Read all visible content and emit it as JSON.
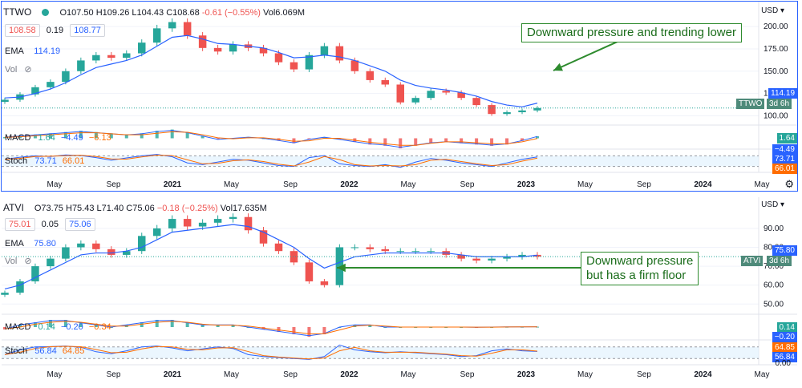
{
  "annotations": {
    "top": "Downward pressure and trending lower",
    "bottom_line1": "Downward pressure",
    "bottom_line2": "but has a firm floor"
  },
  "x_axis_labels": [
    "May",
    "Sep",
    "2021",
    "May",
    "Sep",
    "2022",
    "May",
    "Sep",
    "2023",
    "May",
    "Sep",
    "2024",
    "May"
  ],
  "colors": {
    "up": "#26a69a",
    "down": "#ef5350",
    "ema": "#2962ff",
    "macd": "#2962ff",
    "signal": "#ff6d00",
    "stoch_k": "#2962ff",
    "stoch_d": "#ff6d00",
    "accent": "#2e8b2e"
  },
  "charts": [
    {
      "symbol": "TTWO",
      "ohlc_text": {
        "o": "O107.50",
        "h": "H109.26",
        "l": "L104.43",
        "c": "C108.68",
        "chg": "-0.61 (−0.55%)",
        "vol": "Vol6.069M"
      },
      "bid": "108.58",
      "spread": "0.19",
      "ask": "108.77",
      "ema_label": "EMA",
      "ema_value": "114.19",
      "vol_label": "Vol",
      "macd_label": "MACD",
      "macd_values": [
        "1.64",
        "−4.49",
        "−6.13"
      ],
      "stoch_label": "Stoch",
      "stoch_values": [
        "73.71",
        "66.01"
      ],
      "currency": "USD",
      "price_ticks": [
        "200.00",
        "175.00",
        "150.00",
        "125.00",
        "100.00"
      ],
      "last_price": "114.19",
      "countdown": "3d 6h",
      "macd_tag": "1.64",
      "macd_tag2": "−4.49",
      "stoch_tag1": "73.71",
      "stoch_tag2": "66.01",
      "chart_data": {
        "type": "line",
        "x": [
          "2020-03",
          "2020-04",
          "2020-05",
          "2020-06",
          "2020-07",
          "2020-08",
          "2020-09",
          "2020-10",
          "2020-11",
          "2020-12",
          "2021-01",
          "2021-02",
          "2021-03",
          "2021-04",
          "2021-05",
          "2021-06",
          "2021-07",
          "2021-08",
          "2021-09",
          "2021-10",
          "2021-11",
          "2021-12",
          "2022-01",
          "2022-02",
          "2022-03",
          "2022-04",
          "2022-05",
          "2022-06",
          "2022-07",
          "2022-08",
          "2022-09",
          "2022-10",
          "2022-11",
          "2022-12",
          "2023-01",
          "2023-02"
        ],
        "series": [
          {
            "name": "Close",
            "values": [
              118,
              124,
              132,
              138,
              150,
              162,
              168,
              165,
              170,
              182,
              198,
              205,
              190,
              176,
              172,
              180,
              176,
              170,
              160,
              152,
              168,
              178,
              162,
              150,
              140,
              135,
              115,
              120,
              128,
              126,
              120,
              112,
              102,
              104,
              106,
              108.68
            ]
          },
          {
            "name": "EMA",
            "values": [
              120,
              121,
              125,
              130,
              137,
              146,
              154,
              158,
              162,
              168,
              178,
              188,
              190,
              186,
              181,
              180,
              178,
              176,
              171,
              165,
              166,
              168,
              166,
              162,
              156,
              150,
              140,
              134,
              131,
              129,
              126,
              122,
              116,
              112,
              110,
              114.19
            ]
          }
        ],
        "ylim": [
          95,
          210
        ],
        "macd": [
          1,
          2,
          3,
          4,
          5,
          6,
          5,
          4,
          3,
          4,
          6,
          7,
          5,
          2,
          -1,
          0,
          1,
          0,
          -2,
          -4,
          -1,
          1,
          -1,
          -3,
          -5,
          -6,
          -8,
          -6,
          -4,
          -3,
          -4,
          -5,
          -6,
          -5,
          -2,
          1.64
        ],
        "stoch": [
          60,
          72,
          80,
          76,
          85,
          82,
          70,
          55,
          68,
          80,
          88,
          75,
          40,
          30,
          45,
          60,
          55,
          40,
          25,
          20,
          70,
          82,
          35,
          25,
          20,
          30,
          15,
          45,
          65,
          55,
          40,
          30,
          20,
          40,
          60,
          73.71
        ]
      }
    },
    {
      "symbol": "ATVI",
      "ohlc_text": {
        "o": "O73.75",
        "h": "H75.43",
        "l": "L71.40",
        "c": "C75.06",
        "chg": "−0.18 (−0.25%)",
        "vol": "Vol17.635M"
      },
      "bid": "75.01",
      "spread": "0.05",
      "ask": "75.06",
      "ema_label": "EMA",
      "ema_value": "75.80",
      "vol_label": "Vol",
      "macd_label": "MACD",
      "macd_values": [
        "0.14",
        "−0.20",
        "−0.34"
      ],
      "stoch_label": "Stoch",
      "stoch_values": [
        "56.84",
        "64.85"
      ],
      "currency": "USD",
      "price_ticks": [
        "90.00",
        "80.00",
        "70.00",
        "60.00",
        "50.00"
      ],
      "last_price": "75.80",
      "countdown": "3d 6h",
      "macd_tag": "0.14",
      "macd_tag2": "−0.20",
      "stoch_tag1": "64.85",
      "stoch_tag2": "56.84",
      "stoch_bottom": "0.00",
      "chart_data": {
        "type": "line",
        "x": [
          "2020-03",
          "2020-04",
          "2020-05",
          "2020-06",
          "2020-07",
          "2020-08",
          "2020-09",
          "2020-10",
          "2020-11",
          "2020-12",
          "2021-01",
          "2021-02",
          "2021-03",
          "2021-04",
          "2021-05",
          "2021-06",
          "2021-07",
          "2021-08",
          "2021-09",
          "2021-10",
          "2021-11",
          "2021-12",
          "2022-01",
          "2022-02",
          "2022-03",
          "2022-04",
          "2022-05",
          "2022-06",
          "2022-07",
          "2022-08",
          "2022-09",
          "2022-10",
          "2022-11",
          "2022-12",
          "2023-01",
          "2023-02"
        ],
        "series": [
          {
            "name": "Close",
            "values": [
              56,
              62,
              70,
              74,
              80,
              82,
              79,
              76,
              78,
              86,
              90,
              95,
              91,
              93,
              95,
              96,
              89,
              82,
              78,
              72,
              62,
              60,
              80,
              80,
              79,
              78,
              78,
              78,
              78,
              76,
              74,
              73,
              74,
              75,
              76,
              75.06
            ]
          },
          {
            "name": "EMA",
            "values": [
              58,
              60,
              64,
              68,
              72,
              76,
              77,
              77,
              78,
              80,
              84,
              88,
              89,
              90,
              91,
              92,
              91,
              88,
              84,
              80,
              74,
              69,
              72,
              75,
              76,
              77,
              77,
              77,
              77,
              77,
              76,
              75,
              75,
              75,
              75,
              75.8
            ]
          }
        ],
        "ylim": [
          48,
          98
        ],
        "macd": [
          -1,
          1,
          2,
          3,
          3,
          2,
          1,
          0,
          1,
          2,
          3,
          3,
          2,
          1,
          1,
          1,
          0,
          -1,
          -2,
          -3,
          -4,
          -3,
          0,
          1,
          1,
          0,
          0,
          0,
          0,
          0,
          0,
          -0.1,
          0,
          0.1,
          0.1,
          0.14
        ],
        "stoch": [
          40,
          65,
          80,
          82,
          85,
          78,
          55,
          45,
          60,
          80,
          85,
          75,
          60,
          70,
          80,
          72,
          40,
          30,
          25,
          20,
          15,
          30,
          90,
          65,
          55,
          50,
          55,
          50,
          45,
          40,
          30,
          35,
          60,
          70,
          60,
          56.84
        ]
      }
    }
  ]
}
